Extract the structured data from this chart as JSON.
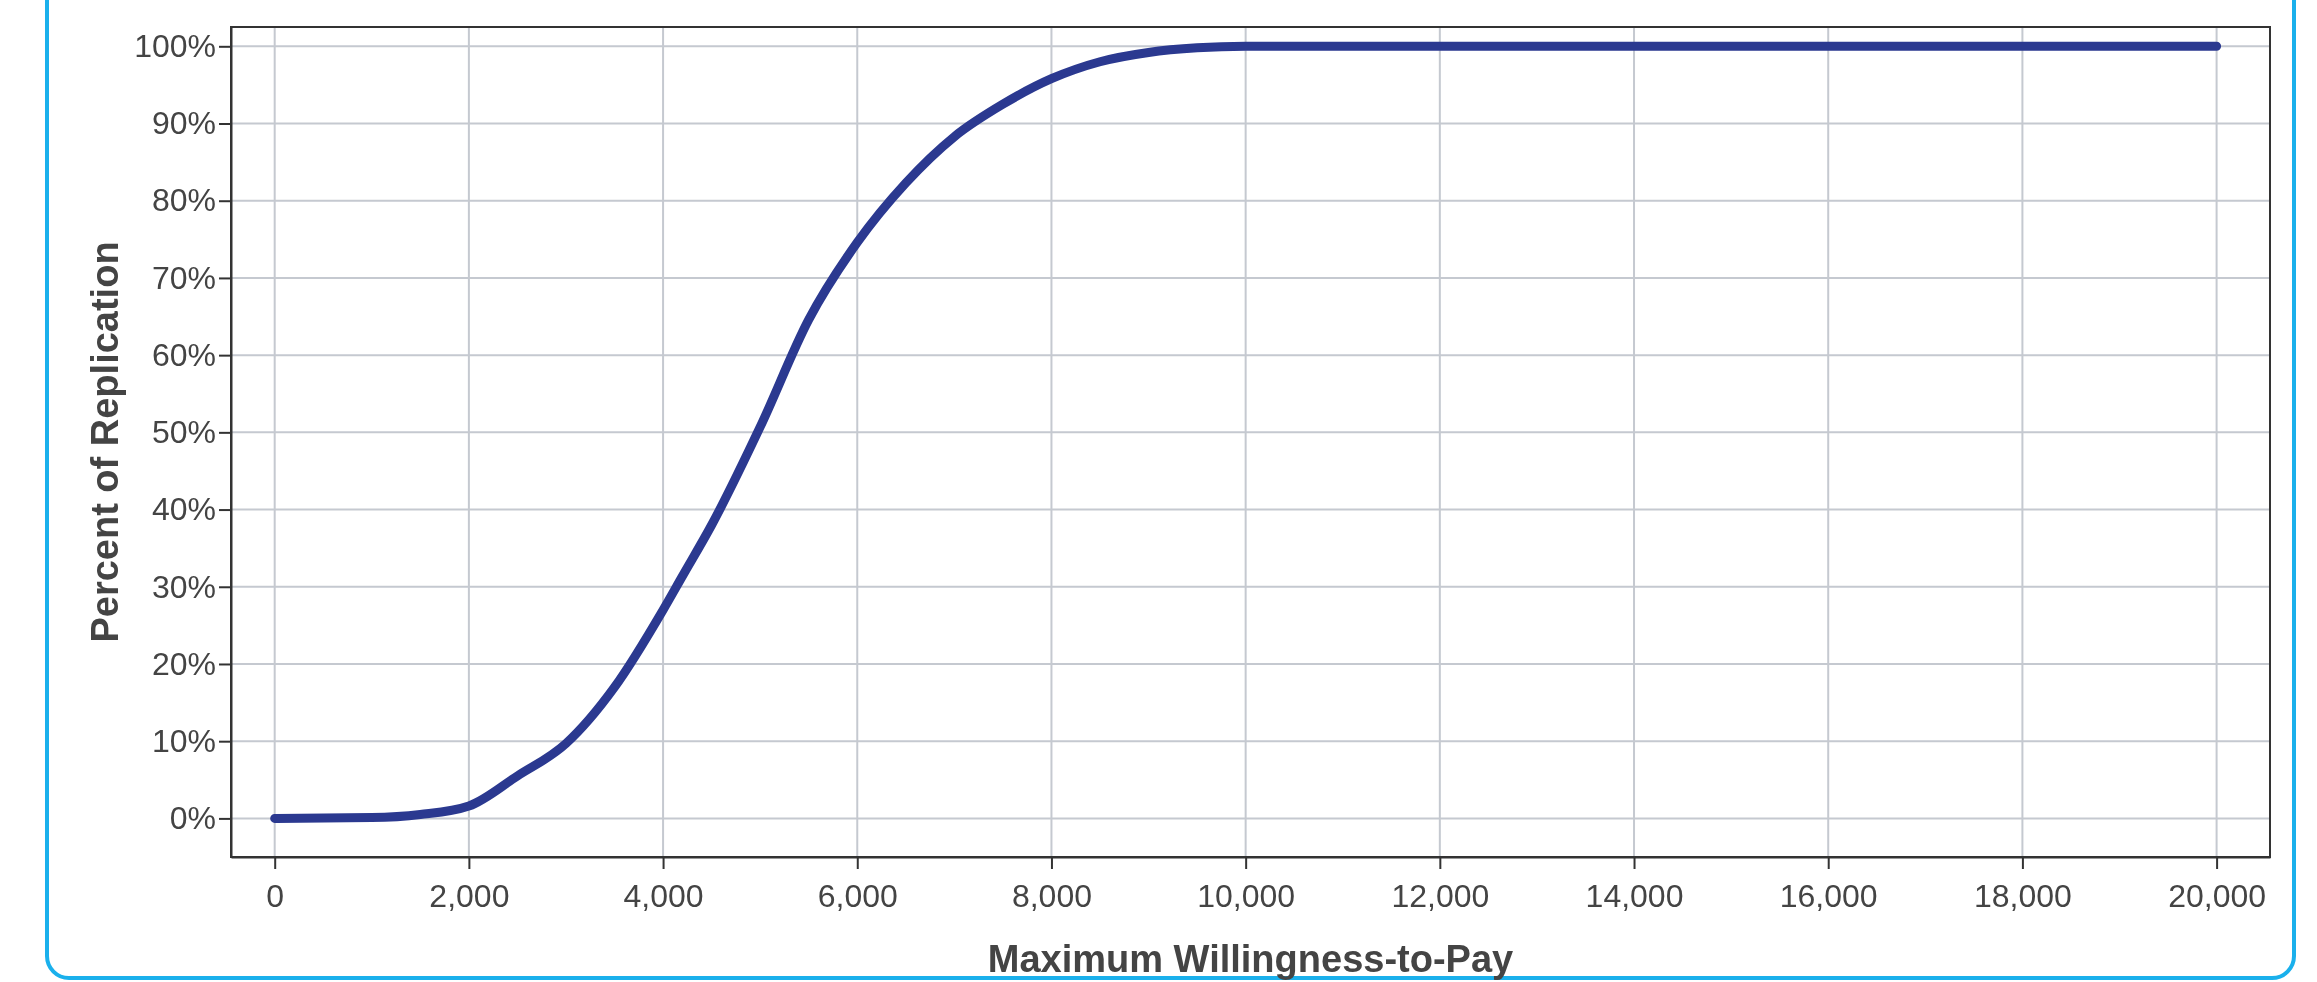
{
  "chart_data": {
    "type": "line",
    "xlabel": "Maximum Willingness-to-Pay",
    "ylabel": "Percent of Replication",
    "x": [
      0,
      1000,
      1500,
      2000,
      2500,
      3000,
      3500,
      4000,
      4200,
      4500,
      5000,
      5500,
      6000,
      6500,
      7000,
      7500,
      8000,
      8500,
      9000,
      9500,
      10000,
      20000
    ],
    "series": [
      {
        "color": "#2b3990",
        "values": [
          0,
          0.1,
          0.5,
          1.6,
          5.5,
          9.7,
          17,
          27,
          31.4,
          38,
          50.7,
          64.6,
          74.6,
          82.3,
          88.3,
          92.5,
          95.8,
          98,
          99.2,
          99.8,
          100,
          100
        ]
      }
    ],
    "xlim": [
      -450,
      20550
    ],
    "ylim": [
      -5,
      102.5
    ],
    "xticks": [
      {
        "value": 0,
        "label": "0"
      },
      {
        "value": 2000,
        "label": "2,000"
      },
      {
        "value": 4000,
        "label": "4,000"
      },
      {
        "value": 6000,
        "label": "6,000"
      },
      {
        "value": 8000,
        "label": "8,000"
      },
      {
        "value": 10000,
        "label": "10,000"
      },
      {
        "value": 12000,
        "label": "12,000"
      },
      {
        "value": 14000,
        "label": "14,000"
      },
      {
        "value": 16000,
        "label": "16,000"
      },
      {
        "value": 18000,
        "label": "18,000"
      },
      {
        "value": 20000,
        "label": "20,000"
      }
    ],
    "yticks": [
      {
        "value": 0,
        "label": "0%"
      },
      {
        "value": 10,
        "label": "10%"
      },
      {
        "value": 20,
        "label": "20%"
      },
      {
        "value": 30,
        "label": "30%"
      },
      {
        "value": 40,
        "label": "40%"
      },
      {
        "value": 50,
        "label": "50%"
      },
      {
        "value": 60,
        "label": "60%"
      },
      {
        "value": 70,
        "label": "70%"
      },
      {
        "value": 80,
        "label": "80%"
      },
      {
        "value": 90,
        "label": "90%"
      },
      {
        "value": 100,
        "label": "100%"
      }
    ],
    "grid": true,
    "marker": "none",
    "line_style": "solid"
  }
}
